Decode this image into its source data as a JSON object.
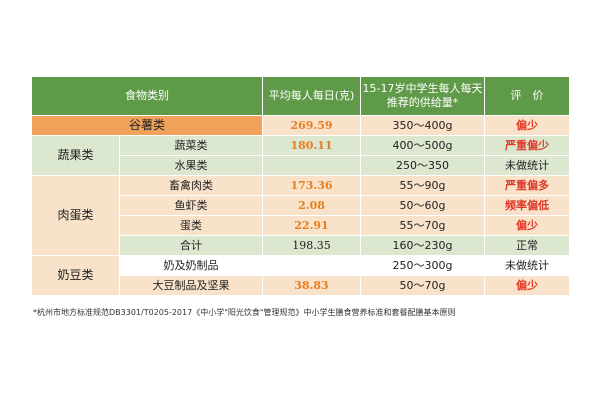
{
  "header": {
    "col1": "食物类别",
    "col2": "平均每人每日(克)",
    "col3": "15-17岁中学生每人每天推荐的供给量*",
    "col4": "评　价"
  },
  "rows": {
    "grain": {
      "cat": "谷薯类",
      "value": "269.59",
      "rec": "350～400g",
      "eval": "偏少"
    },
    "veg_group": "蔬果类",
    "veg": {
      "sub": "蔬菜类",
      "value": "180.11",
      "rec": "400～500g",
      "eval": "严重偏少"
    },
    "fruit": {
      "sub": "水果类",
      "value": "",
      "rec": "250～350",
      "eval": "未做统计"
    },
    "meat_group": "肉蛋类",
    "poultry": {
      "sub": "畜禽肉类",
      "value": "173.36",
      "rec": "55～90g",
      "eval": "严重偏多"
    },
    "fish": {
      "sub": "鱼虾类",
      "value": "2.08",
      "rec": "50～60g",
      "eval": "频率偏低"
    },
    "egg": {
      "sub": "蛋类",
      "value": "22.91",
      "rec": "55～70g",
      "eval": "偏少"
    },
    "total": {
      "sub": "合计",
      "value": "198.35",
      "rec": "160～230g",
      "eval": "正常"
    },
    "dairy_group": "奶豆类",
    "milk": {
      "sub": "奶及奶制品",
      "value": "",
      "rec": "250～300g",
      "eval": "未做统计"
    },
    "soy": {
      "sub": "大豆制品及坚果",
      "value": "38.83",
      "rec": "50～70g",
      "eval": "偏少"
    }
  },
  "footnote": "*杭州市地方标准规范DB3301/T0205-2017《中小学\"阳光饮食\"管理规范》中小学生膳食营养标准和套餐配膳基本原则",
  "colors": {
    "header_green": "#5f9a48",
    "orange": "#f0a25a",
    "light_orange": "#f8e2c9",
    "light_green": "#dce7cf",
    "red_text": "#e03a2a",
    "orange_text": "#e67e22"
  }
}
